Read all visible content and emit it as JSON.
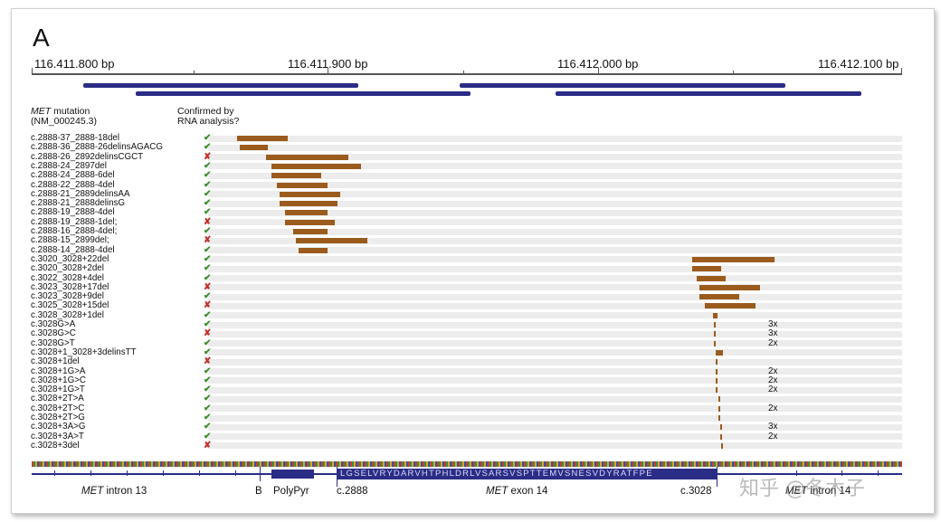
{
  "panel_label": "A",
  "axis": {
    "ticks": [
      "116.411.800 bp",
      "116.411.900 bp",
      "116.412.000 bp",
      "116.412.100 bp"
    ]
  },
  "headers": {
    "mutation_prefix": "MET",
    "mutation_suffix": " mutation",
    "mutation_line2": "(NM_000245.3)",
    "confirm_line1": "Confirmed by",
    "confirm_line2": "RNA analysis?"
  },
  "rows": [
    {
      "label": "c.2888-37_2888-18del",
      "confirmed": true,
      "mark": "✔",
      "start": 262,
      "end": 318,
      "count": ""
    },
    {
      "label": "c.2888-36_2888-26delinsAGACG",
      "confirmed": true,
      "mark": "✔",
      "start": 265,
      "end": 296,
      "count": ""
    },
    {
      "label": "c.2888-26_2892delinsCGCT",
      "confirmed": false,
      "mark": "✘",
      "start": 294,
      "end": 385,
      "count": ""
    },
    {
      "label": "c.2888-24_2897del",
      "confirmed": true,
      "mark": "✔",
      "start": 300,
      "end": 399,
      "count": ""
    },
    {
      "label": "c.2888-24_2888-6del",
      "confirmed": true,
      "mark": "✔",
      "start": 300,
      "end": 355,
      "count": ""
    },
    {
      "label": "c.2888-22_2888-4del",
      "confirmed": true,
      "mark": "✔",
      "start": 306,
      "end": 362,
      "count": ""
    },
    {
      "label": "c.2888-21_2889delinsAA",
      "confirmed": true,
      "mark": "✔",
      "start": 309,
      "end": 376,
      "count": ""
    },
    {
      "label": "c.2888-21_2888delinsG",
      "confirmed": true,
      "mark": "✔",
      "start": 309,
      "end": 373,
      "count": ""
    },
    {
      "label": "c.2888-19_2888-4del",
      "confirmed": true,
      "mark": "✔",
      "start": 315,
      "end": 362,
      "count": ""
    },
    {
      "label": "c.2888-19_2888-1del;",
      "confirmed": false,
      "mark": "✘",
      "start": 315,
      "end": 370,
      "count": ""
    },
    {
      "label": "c.2888-16_2888-4del;",
      "confirmed": true,
      "mark": "✔",
      "start": 324,
      "end": 362,
      "count": ""
    },
    {
      "label": "c.2888-15_2899del;",
      "confirmed": false,
      "mark": "✘",
      "start": 327,
      "end": 406,
      "count": ""
    },
    {
      "label": "c.2888-14_2888-4del",
      "confirmed": true,
      "mark": "✔",
      "start": 330,
      "end": 362,
      "count": ""
    },
    {
      "label": "c.3020_3028+22del",
      "confirmed": true,
      "mark": "✔",
      "start": 765,
      "end": 856,
      "count": ""
    },
    {
      "label": "c.3020_3028+2del",
      "confirmed": true,
      "mark": "✔",
      "start": 765,
      "end": 797,
      "count": ""
    },
    {
      "label": "c.3022_3028+4del",
      "confirmed": true,
      "mark": "✔",
      "start": 770,
      "end": 802,
      "count": ""
    },
    {
      "label": "c.3023_3028+17del",
      "confirmed": false,
      "mark": "✘",
      "start": 773,
      "end": 840,
      "count": ""
    },
    {
      "label": "c.3023_3028+9del",
      "confirmed": true,
      "mark": "✔",
      "start": 773,
      "end": 817,
      "count": ""
    },
    {
      "label": "c.3025_3028+15del",
      "confirmed": false,
      "mark": "✘",
      "start": 779,
      "end": 835,
      "count": ""
    },
    {
      "label": "c.3028_3028+1del",
      "confirmed": true,
      "mark": "✔",
      "start": 788,
      "end": 793,
      "count": ""
    },
    {
      "label": "c.3028G>A",
      "confirmed": true,
      "mark": "✔",
      "start": 789,
      "end": 791,
      "count": "3x"
    },
    {
      "label": "c.3028G>C",
      "confirmed": false,
      "mark": "✘",
      "start": 789,
      "end": 791,
      "count": "3x"
    },
    {
      "label": "c.3028G>T",
      "confirmed": true,
      "mark": "✔",
      "start": 789,
      "end": 791,
      "count": "2x"
    },
    {
      "label": "c.3028+1_3028+3delinsTT",
      "confirmed": true,
      "mark": "✔",
      "start": 791,
      "end": 799,
      "count": ""
    },
    {
      "label": "c.3028+1del",
      "confirmed": false,
      "mark": "✘",
      "start": 791,
      "end": 793,
      "count": ""
    },
    {
      "label": "c.3028+1G>A",
      "confirmed": true,
      "mark": "✔",
      "start": 791,
      "end": 793,
      "count": "2x"
    },
    {
      "label": "c.3028+1G>C",
      "confirmed": true,
      "mark": "✔",
      "start": 791,
      "end": 793,
      "count": "2x"
    },
    {
      "label": "c.3028+1G>T",
      "confirmed": true,
      "mark": "✔",
      "start": 791,
      "end": 793,
      "count": "2x"
    },
    {
      "label": "c.3028+2T>A",
      "confirmed": true,
      "mark": "✔",
      "start": 794,
      "end": 796,
      "count": ""
    },
    {
      "label": "c.3028+2T>C",
      "confirmed": true,
      "mark": "✔",
      "start": 794,
      "end": 796,
      "count": "2x"
    },
    {
      "label": "c.3028+2T>G",
      "confirmed": true,
      "mark": "✔",
      "start": 794,
      "end": 796,
      "count": ""
    },
    {
      "label": "c.3028+3A>G",
      "confirmed": true,
      "mark": "✔",
      "start": 796,
      "end": 798,
      "count": "3x"
    },
    {
      "label": "c.3028+3A>T",
      "confirmed": true,
      "mark": "✔",
      "start": 796,
      "end": 798,
      "count": "2x"
    },
    {
      "label": "c.3028+3del",
      "confirmed": false,
      "mark": "✘",
      "start": 797,
      "end": 799,
      "count": ""
    }
  ],
  "gene_track": {
    "exon_sequence": "LGSELVRYDARVHTPHLDRLVSARSVSPTTEMVSNESVDYRATFPE",
    "intron13_prefix": "MET",
    "intron13_suffix": " intron 13",
    "b_label": "B",
    "polypyr_label": "PolyPyr",
    "c2888_label": "c.2888",
    "exon14_prefix": "MET",
    "exon14_suffix": " exon 14",
    "c3028_label": "c.3028",
    "intron14_prefix": "MET",
    "intron14_suffix": " intron 14"
  },
  "watermark": "知乎 @冬木子",
  "colors": {
    "deletion": "#9a5b1d",
    "transcript": "#2b2c86",
    "confirmed": "#3b8d2a",
    "not_confirmed": "#c2302d"
  }
}
